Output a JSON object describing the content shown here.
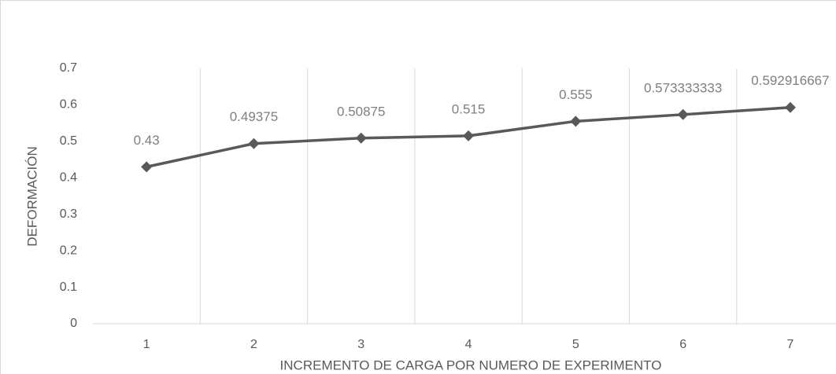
{
  "chart_data": {
    "type": "line",
    "x_label": "INCREMENTO DE CARGA POR NUMERO DE EXPERIMENTO",
    "y_label": "DEFORMACIÓN",
    "categories": [
      "1",
      "2",
      "3",
      "4",
      "5",
      "6",
      "7"
    ],
    "series": [
      {
        "name": "Deformación",
        "color": "#595959",
        "values": [
          0.43,
          0.49375,
          0.50875,
          0.515,
          0.555,
          0.573333333,
          0.592916667
        ]
      }
    ],
    "ylim": [
      0,
      0.7
    ],
    "yticks": [
      0,
      0.1,
      0.2,
      0.3,
      0.4,
      0.5,
      0.6,
      0.7
    ],
    "grid": true,
    "data_labels": true
  }
}
